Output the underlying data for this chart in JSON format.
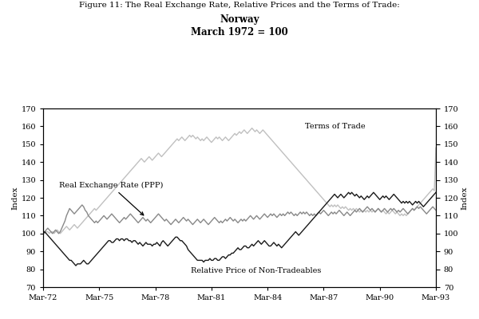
{
  "title_line1": "Figure 11: The Real Exchange Rate, Relative Prices and the Terms of Trade:",
  "title_line2": "Norway",
  "title_line3": "March 1972 = 100",
  "ylabel_left": "Index",
  "ylabel_right": "Index",
  "ylim": [
    70,
    170
  ],
  "yticks": [
    70,
    80,
    90,
    100,
    110,
    120,
    130,
    140,
    150,
    160,
    170
  ],
  "xtick_labels": [
    "Mar-72",
    "Mar-75",
    "Mar-78",
    "Mar-81",
    "Mar-84",
    "Mar-87",
    "Mar-90",
    "Mar-93"
  ],
  "xtick_positions": [
    0,
    36,
    72,
    108,
    144,
    180,
    216,
    252
  ],
  "annotation_text": "Real Exchange Rate (PPP)",
  "label_terms": "Terms of Trade",
  "label_rel": "Relative Price of Non-Tradeables",
  "bg_color": "#ffffff",
  "n_months": 253,
  "real_exchange_rate": [
    100,
    101,
    102,
    103,
    102,
    101,
    100,
    101,
    102,
    101,
    100,
    101,
    103,
    105,
    107,
    110,
    112,
    114,
    113,
    112,
    111,
    112,
    113,
    114,
    115,
    116,
    115,
    113,
    112,
    110,
    109,
    108,
    107,
    106,
    107,
    106,
    107,
    108,
    109,
    110,
    109,
    108,
    109,
    110,
    111,
    110,
    109,
    108,
    107,
    106,
    107,
    108,
    109,
    108,
    109,
    110,
    111,
    110,
    109,
    108,
    107,
    106,
    107,
    108,
    109,
    108,
    107,
    108,
    107,
    106,
    107,
    108,
    109,
    110,
    111,
    110,
    109,
    108,
    107,
    108,
    107,
    106,
    105,
    106,
    107,
    108,
    107,
    106,
    107,
    108,
    109,
    108,
    107,
    108,
    107,
    106,
    105,
    106,
    107,
    108,
    107,
    106,
    107,
    108,
    107,
    106,
    105,
    106,
    107,
    108,
    109,
    108,
    107,
    106,
    107,
    106,
    107,
    108,
    107,
    108,
    109,
    108,
    107,
    108,
    107,
    106,
    107,
    108,
    107,
    108,
    107,
    108,
    109,
    110,
    109,
    108,
    109,
    110,
    109,
    108,
    109,
    110,
    111,
    110,
    109,
    110,
    111,
    110,
    111,
    110,
    109,
    110,
    111,
    110,
    111,
    110,
    111,
    112,
    111,
    112,
    111,
    110,
    111,
    110,
    111,
    112,
    111,
    112,
    111,
    112,
    111,
    110,
    111,
    110,
    111,
    110,
    111,
    112,
    111,
    112,
    113,
    112,
    111,
    110,
    111,
    112,
    111,
    112,
    111,
    112,
    113,
    112,
    111,
    110,
    111,
    112,
    111,
    110,
    111,
    112,
    113,
    112,
    113,
    114,
    113,
    112,
    113,
    114,
    115,
    114,
    113,
    114,
    113,
    112,
    113,
    114,
    113,
    112,
    113,
    114,
    113,
    112,
    113,
    114,
    113,
    114,
    113,
    112,
    113,
    112,
    113,
    114,
    113,
    112,
    111,
    112,
    113,
    114,
    113,
    114,
    115,
    114,
    115,
    114,
    113,
    112,
    111,
    112,
    113,
    114,
    115,
    114,
    113
  ],
  "terms_of_trade": [
    100,
    100,
    101,
    101,
    100,
    101,
    101,
    100,
    101,
    102,
    101,
    100,
    101,
    102,
    103,
    104,
    103,
    102,
    103,
    104,
    105,
    104,
    103,
    104,
    105,
    106,
    107,
    108,
    109,
    110,
    111,
    112,
    113,
    114,
    113,
    114,
    115,
    116,
    117,
    118,
    119,
    120,
    121,
    122,
    123,
    124,
    125,
    126,
    127,
    128,
    129,
    130,
    131,
    132,
    133,
    134,
    135,
    136,
    137,
    138,
    139,
    140,
    141,
    142,
    141,
    140,
    141,
    142,
    143,
    142,
    141,
    142,
    143,
    144,
    145,
    144,
    143,
    144,
    145,
    146,
    147,
    148,
    149,
    150,
    151,
    152,
    153,
    152,
    153,
    154,
    153,
    152,
    153,
    154,
    155,
    154,
    155,
    154,
    153,
    154,
    153,
    152,
    153,
    152,
    153,
    154,
    153,
    152,
    151,
    152,
    153,
    154,
    153,
    154,
    153,
    152,
    153,
    154,
    153,
    152,
    153,
    154,
    155,
    156,
    155,
    156,
    157,
    156,
    157,
    158,
    157,
    156,
    157,
    158,
    159,
    158,
    157,
    158,
    157,
    156,
    157,
    158,
    157,
    156,
    155,
    154,
    153,
    152,
    151,
    150,
    149,
    148,
    147,
    146,
    145,
    144,
    143,
    142,
    141,
    140,
    139,
    138,
    137,
    136,
    135,
    134,
    133,
    132,
    131,
    130,
    129,
    128,
    127,
    126,
    125,
    124,
    123,
    122,
    121,
    120,
    119,
    118,
    117,
    116,
    115,
    116,
    115,
    116,
    115,
    116,
    115,
    114,
    115,
    114,
    115,
    114,
    113,
    114,
    113,
    114,
    113,
    114,
    113,
    112,
    113,
    112,
    113,
    112,
    113,
    112,
    113,
    112,
    113,
    112,
    113,
    114,
    113,
    112,
    113,
    112,
    111,
    112,
    111,
    112,
    113,
    112,
    111,
    112,
    111,
    110,
    111,
    110,
    111,
    110,
    111,
    112,
    113,
    114,
    113,
    114,
    115,
    116,
    117,
    118,
    119,
    120,
    121,
    122,
    123,
    124,
    125,
    124,
    148
  ],
  "relative_price": [
    100,
    101,
    100,
    99,
    98,
    97,
    96,
    95,
    94,
    93,
    92,
    91,
    90,
    89,
    88,
    87,
    86,
    85,
    85,
    84,
    83,
    82,
    83,
    83,
    83,
    84,
    85,
    84,
    83,
    83,
    84,
    85,
    86,
    87,
    88,
    89,
    90,
    91,
    92,
    93,
    94,
    95,
    96,
    96,
    95,
    95,
    96,
    97,
    97,
    96,
    97,
    97,
    96,
    97,
    97,
    96,
    96,
    95,
    96,
    96,
    95,
    94,
    95,
    94,
    93,
    94,
    95,
    94,
    94,
    94,
    93,
    94,
    94,
    95,
    94,
    93,
    95,
    96,
    95,
    94,
    93,
    94,
    95,
    96,
    97,
    98,
    98,
    97,
    96,
    96,
    95,
    94,
    93,
    91,
    90,
    89,
    88,
    87,
    86,
    85,
    85,
    85,
    85,
    84,
    85,
    85,
    85,
    86,
    85,
    85,
    86,
    86,
    85,
    85,
    86,
    87,
    87,
    86,
    87,
    88,
    88,
    89,
    89,
    90,
    91,
    92,
    91,
    91,
    92,
    93,
    93,
    92,
    92,
    93,
    94,
    93,
    94,
    95,
    96,
    95,
    94,
    95,
    96,
    95,
    94,
    93,
    93,
    94,
    95,
    94,
    93,
    94,
    93,
    92,
    93,
    94,
    95,
    96,
    97,
    98,
    99,
    100,
    101,
    100,
    99,
    100,
    101,
    102,
    103,
    104,
    105,
    106,
    107,
    108,
    109,
    110,
    111,
    112,
    113,
    114,
    115,
    116,
    117,
    118,
    119,
    120,
    121,
    122,
    121,
    120,
    121,
    122,
    121,
    120,
    121,
    122,
    123,
    122,
    123,
    122,
    121,
    122,
    121,
    120,
    121,
    120,
    119,
    120,
    121,
    120,
    121,
    122,
    123,
    122,
    121,
    120,
    119,
    120,
    121,
    120,
    121,
    120,
    119,
    120,
    121,
    122,
    121,
    120,
    119,
    118,
    117,
    118,
    117,
    118,
    117,
    118,
    117,
    116,
    117,
    118,
    117,
    118,
    117,
    116,
    115,
    116,
    117,
    118,
    119,
    120,
    121,
    122,
    123
  ]
}
